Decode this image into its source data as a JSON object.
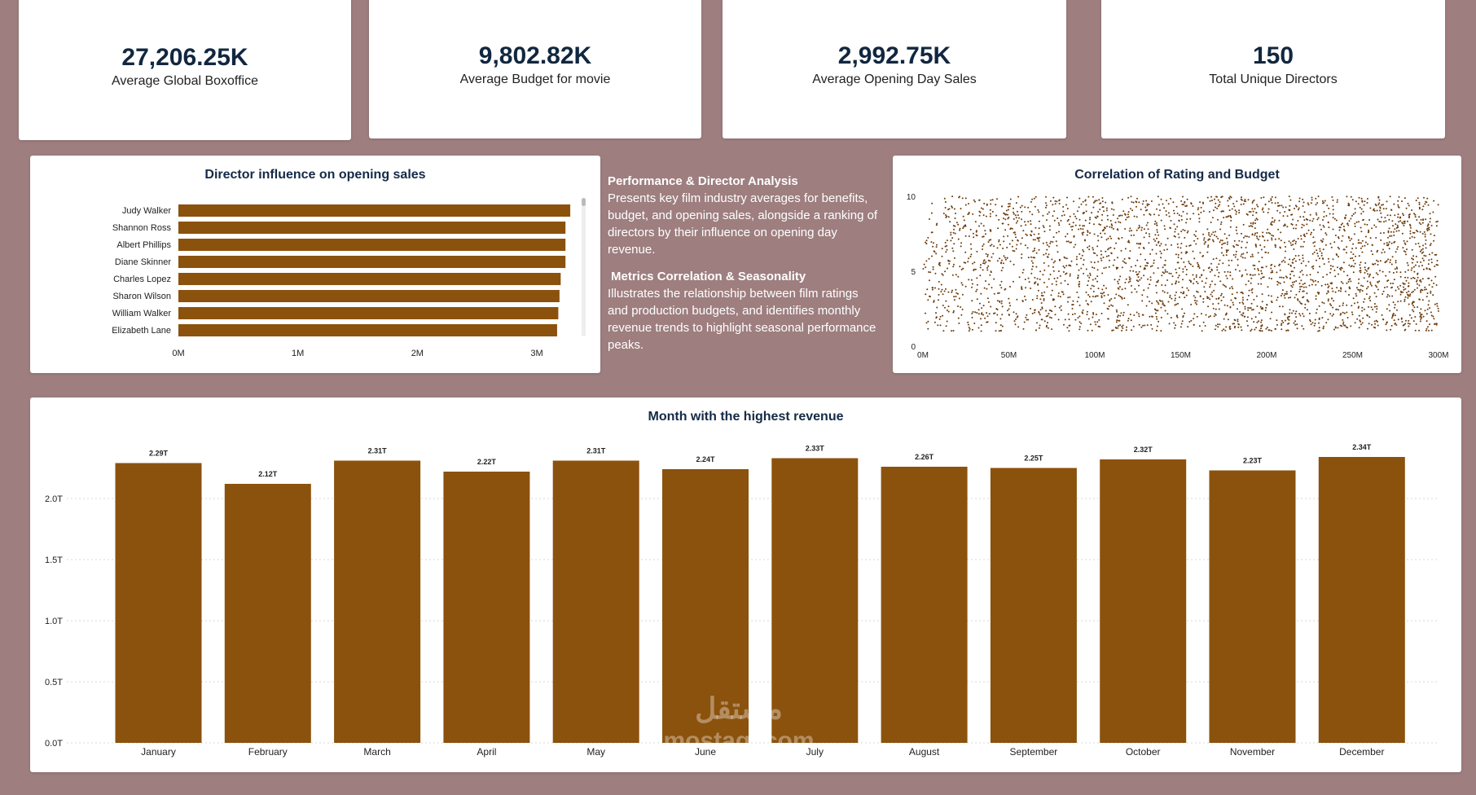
{
  "kpis": [
    {
      "value": "27,206.25K",
      "label": "Average Global Boxoffice"
    },
    {
      "value": "9,802.82K",
      "label": "Average Budget for movie"
    },
    {
      "value": "2,992.75K",
      "label": "Average Opening Day Sales"
    },
    {
      "value": "150",
      "label": "Total Unique Directors"
    }
  ],
  "description": {
    "section1_title": "Performance & Director Analysis",
    "section1_text": "Presents key film industry averages for benefits, budget, and opening sales, alongside a ranking of directors by their influence on opening day revenue.",
    "section2_title": "Metrics Correlation & Seasonality",
    "section2_text": "Illustrates the relationship between film ratings and production budgets, and identifies monthly revenue trends to highlight seasonal performance peaks."
  },
  "watermark": {
    "line1": "مستقل",
    "line2": "mostaql.com"
  },
  "colors": {
    "bar": "#8b520d",
    "dot": "#6b3a0a"
  },
  "chart_data": [
    {
      "type": "bar",
      "orientation": "horizontal",
      "title": "Director influence on opening sales",
      "categories": [
        "Judy Walker",
        "Shannon Ross",
        "Albert Phillips",
        "Diane Skinner",
        "Charles Lopez",
        "Sharon Wilson",
        "William Walker",
        "Elizabeth Lane"
      ],
      "values": [
        3.28,
        3.24,
        3.24,
        3.24,
        3.2,
        3.19,
        3.18,
        3.17
      ],
      "unit": "M",
      "xlim": [
        0,
        3.3
      ],
      "xticks": [
        "0M",
        "1M",
        "2M",
        "3M"
      ],
      "grid": false
    },
    {
      "type": "scatter",
      "title": "Correlation of Rating and Budget",
      "xlabel": "",
      "ylabel": "",
      "xlim": [
        0,
        300
      ],
      "ylim": [
        0,
        10
      ],
      "xticks": [
        "0M",
        "50M",
        "100M",
        "150M",
        "200M",
        "250M",
        "300M"
      ],
      "yticks": [
        "0",
        "5",
        "10"
      ],
      "point_count": 3000,
      "note": "dense uniform cloud: ratings ~1 to 10, budgets ~0M to 300M"
    },
    {
      "type": "bar",
      "title": "Month with the highest revenue",
      "categories": [
        "January",
        "February",
        "March",
        "April",
        "May",
        "June",
        "July",
        "August",
        "September",
        "October",
        "November",
        "December"
      ],
      "values": [
        2.29,
        2.12,
        2.31,
        2.22,
        2.31,
        2.24,
        2.33,
        2.26,
        2.25,
        2.32,
        2.23,
        2.34
      ],
      "labels": [
        "2.29T",
        "2.12T",
        "2.31T",
        "2.22T",
        "2.31T",
        "2.24T",
        "2.33T",
        "2.26T",
        "2.25T",
        "2.32T",
        "2.23T",
        "2.34T"
      ],
      "unit": "T",
      "ylim": [
        0,
        2.4
      ],
      "yticks": [
        "0.0T",
        "0.5T",
        "1.0T",
        "1.5T",
        "2.0T"
      ],
      "grid": true
    }
  ]
}
